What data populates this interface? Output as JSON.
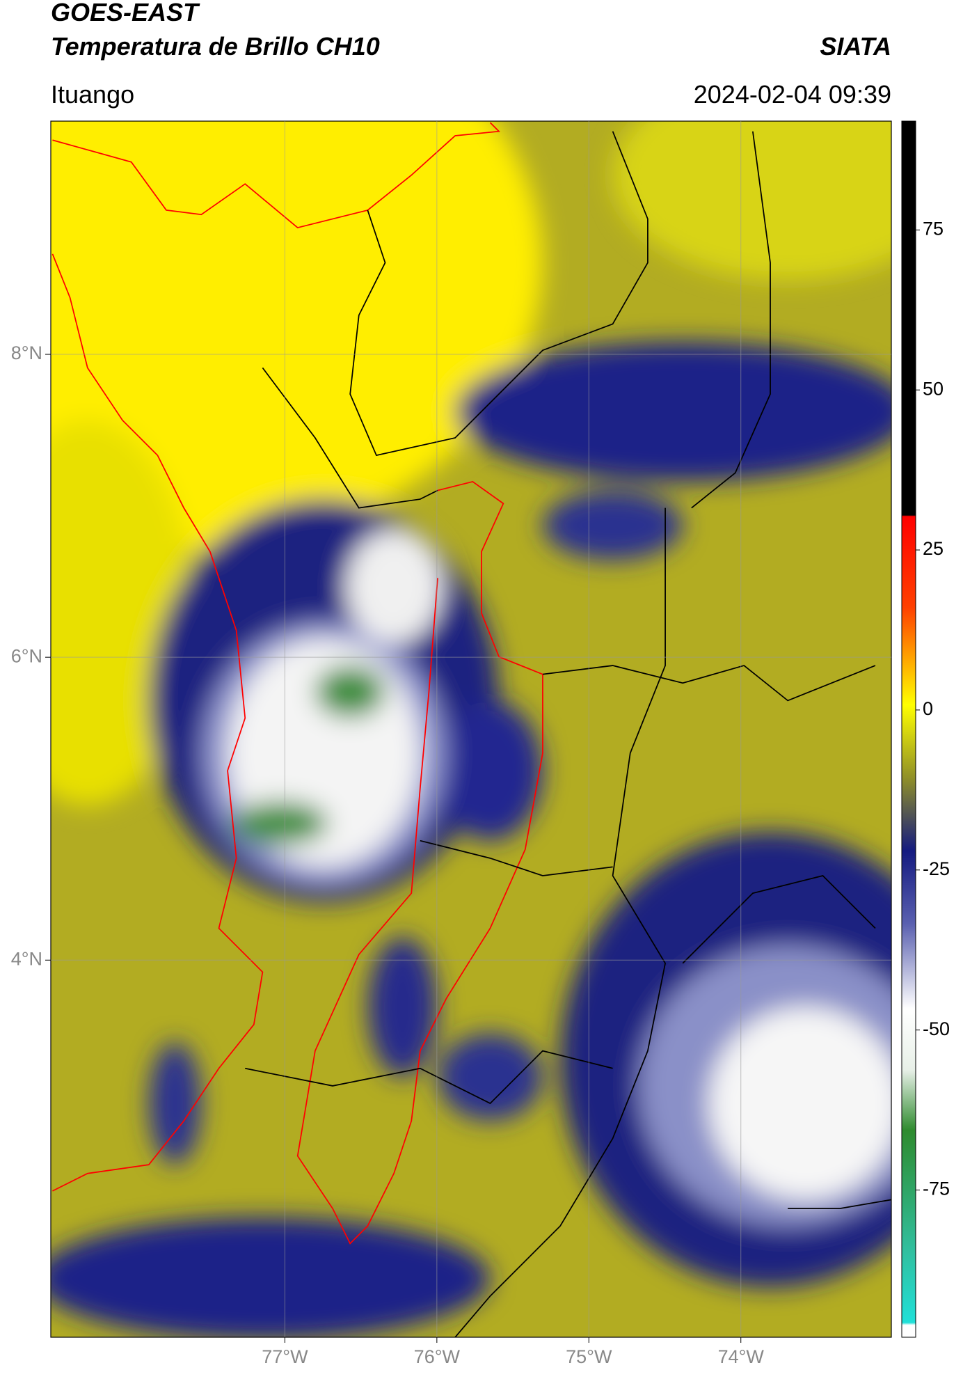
{
  "header": {
    "title": "GOES-EAST",
    "subtitle": "Temperatura de Brillo CH10",
    "source": "SIATA",
    "location": "Ituango",
    "datetime": "2024-02-04 09:39"
  },
  "map": {
    "xlim": [
      -78.54,
      -73.01
    ],
    "ylim": [
      1.51,
      9.54
    ],
    "xticks": [
      {
        "value": -77,
        "label": "77°W"
      },
      {
        "value": -76,
        "label": "76°W"
      },
      {
        "value": -75,
        "label": "75°W"
      },
      {
        "value": -74,
        "label": "74°W"
      }
    ],
    "yticks": [
      {
        "value": 8,
        "label": "8°N"
      },
      {
        "value": 6,
        "label": "6°N"
      },
      {
        "value": 4,
        "label": "4°N"
      }
    ],
    "grid": true
  },
  "colorbar": {
    "lim": [
      -98,
      92
    ],
    "ticks": [
      75,
      50,
      25,
      0,
      -25,
      -50,
      -75
    ]
  }
}
